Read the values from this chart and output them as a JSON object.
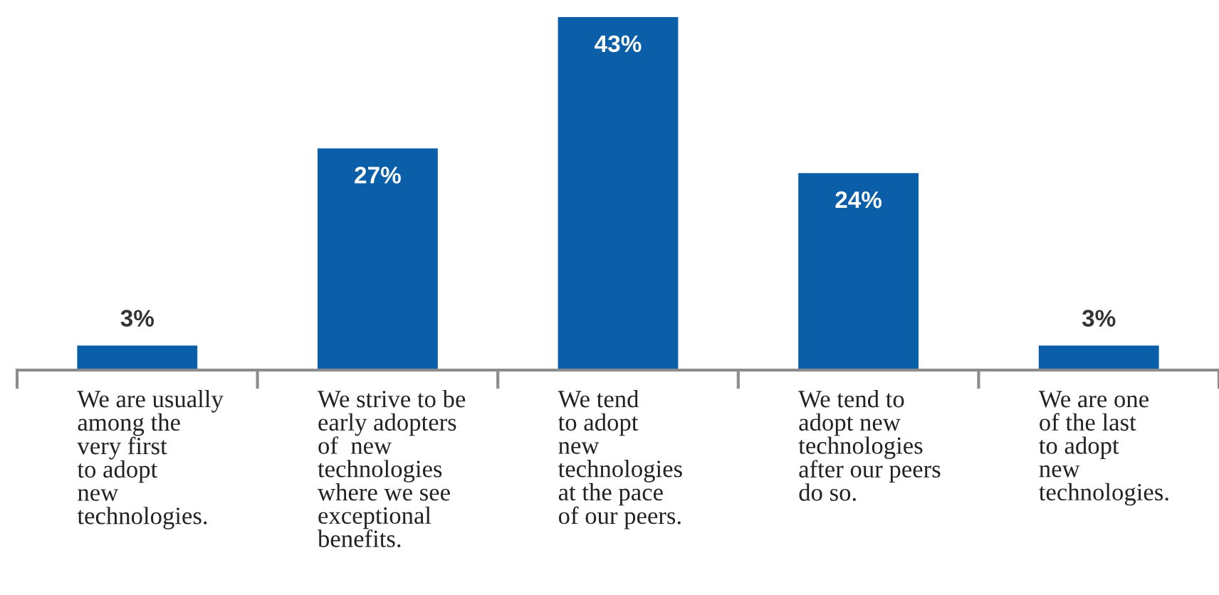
{
  "chart_data": {
    "type": "bar",
    "categories": [
      "We are usually\namong the\nvery first\nto adopt\nnew\ntechnologies.",
      "We strive to be\nearly adopters\nof  new\ntechnologies\nwhere we see\nexceptional\nbenefits.",
      "We tend\nto adopt\nnew\ntechnologies\nat the pace\nof our peers.",
      "We tend to\nadopt new\ntechnologies\nafter our peers\ndo so.",
      "We are one\nof the last\nto adopt\nnew\ntechnologies."
    ],
    "values": [
      3,
      27,
      43,
      24,
      3
    ],
    "color": "#0a5fa8",
    "value_labels": [
      "3%",
      "27%",
      "43%",
      "24%",
      "3%"
    ]
  }
}
